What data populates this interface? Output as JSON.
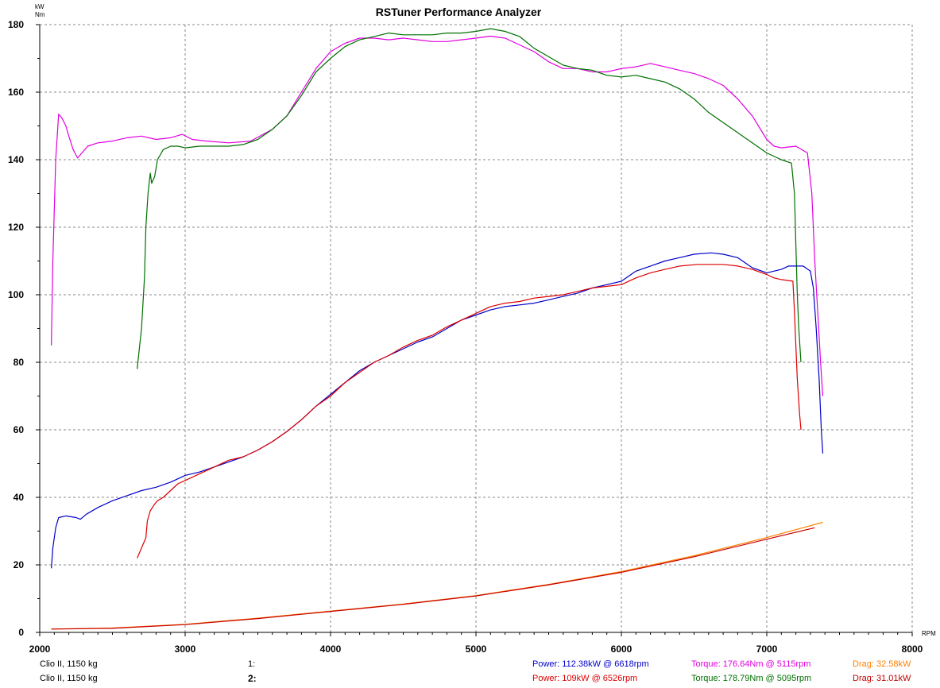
{
  "chart_data": {
    "type": "line",
    "title": "RSTuner Performance Analyzer",
    "ylabel_units": [
      "kW",
      "Nm"
    ],
    "xlabel": "RPM",
    "xlim": [
      2000,
      8000
    ],
    "ylim": [
      0,
      180
    ],
    "x_ticks": [
      "2000",
      "3000",
      "4000",
      "5000",
      "6000",
      "7000",
      "8000"
    ],
    "y_ticks": [
      "0",
      "20",
      "40",
      "60",
      "80",
      "100",
      "120",
      "140",
      "160",
      "180"
    ],
    "grid": true,
    "series": [
      {
        "name": "Torque 1",
        "color": "#e000e0",
        "points": [
          [
            2080,
            85
          ],
          [
            2090,
            110
          ],
          [
            2110,
            140
          ],
          [
            2130,
            153.5
          ],
          [
            2150,
            152.5
          ],
          [
            2180,
            150
          ],
          [
            2200,
            147
          ],
          [
            2230,
            143
          ],
          [
            2260,
            140.5
          ],
          [
            2290,
            142
          ],
          [
            2330,
            144
          ],
          [
            2400,
            145
          ],
          [
            2500,
            145.5
          ],
          [
            2600,
            146.5
          ],
          [
            2700,
            147
          ],
          [
            2800,
            146
          ],
          [
            2900,
            146.5
          ],
          [
            2980,
            147.5
          ],
          [
            3050,
            146
          ],
          [
            3150,
            145.5
          ],
          [
            3300,
            145
          ],
          [
            3450,
            145.5
          ],
          [
            3600,
            149
          ],
          [
            3700,
            153
          ],
          [
            3800,
            160
          ],
          [
            3900,
            167
          ],
          [
            4000,
            172
          ],
          [
            4100,
            174.5
          ],
          [
            4200,
            176
          ],
          [
            4300,
            176
          ],
          [
            4400,
            175.5
          ],
          [
            4500,
            176
          ],
          [
            4600,
            175.5
          ],
          [
            4700,
            175
          ],
          [
            4800,
            175
          ],
          [
            4900,
            175.5
          ],
          [
            5000,
            176
          ],
          [
            5100,
            176.6
          ],
          [
            5200,
            176
          ],
          [
            5300,
            174
          ],
          [
            5400,
            172
          ],
          [
            5500,
            169
          ],
          [
            5600,
            167
          ],
          [
            5700,
            167
          ],
          [
            5800,
            166
          ],
          [
            5900,
            166
          ],
          [
            6000,
            167
          ],
          [
            6100,
            167.5
          ],
          [
            6200,
            168.5
          ],
          [
            6300,
            167.5
          ],
          [
            6400,
            166.5
          ],
          [
            6500,
            165.5
          ],
          [
            6600,
            164
          ],
          [
            6700,
            162
          ],
          [
            6800,
            158
          ],
          [
            6900,
            153
          ],
          [
            7000,
            146
          ],
          [
            7050,
            144
          ],
          [
            7100,
            143.5
          ],
          [
            7200,
            144
          ],
          [
            7280,
            142
          ],
          [
            7310,
            130
          ],
          [
            7330,
            110
          ],
          [
            7350,
            95
          ],
          [
            7370,
            80
          ],
          [
            7385,
            70
          ]
        ]
      },
      {
        "name": "Torque 2",
        "color": "#007000",
        "points": [
          [
            2670,
            78
          ],
          [
            2700,
            90
          ],
          [
            2720,
            105
          ],
          [
            2730,
            120
          ],
          [
            2745,
            130
          ],
          [
            2760,
            136
          ],
          [
            2770,
            133
          ],
          [
            2790,
            135
          ],
          [
            2810,
            140
          ],
          [
            2850,
            143
          ],
          [
            2900,
            144
          ],
          [
            2950,
            144
          ],
          [
            3000,
            143.5
          ],
          [
            3100,
            144
          ],
          [
            3200,
            144
          ],
          [
            3300,
            144
          ],
          [
            3400,
            144.5
          ],
          [
            3500,
            146
          ],
          [
            3600,
            149
          ],
          [
            3700,
            153
          ],
          [
            3800,
            159
          ],
          [
            3900,
            166
          ],
          [
            4000,
            170
          ],
          [
            4100,
            173.5
          ],
          [
            4200,
            175.5
          ],
          [
            4300,
            176.5
          ],
          [
            4400,
            177.5
          ],
          [
            4500,
            177
          ],
          [
            4600,
            177
          ],
          [
            4700,
            177
          ],
          [
            4800,
            177.5
          ],
          [
            4900,
            177.5
          ],
          [
            5000,
            178
          ],
          [
            5100,
            178.8
          ],
          [
            5200,
            178
          ],
          [
            5300,
            176.5
          ],
          [
            5400,
            173
          ],
          [
            5500,
            170.5
          ],
          [
            5600,
            168
          ],
          [
            5700,
            167
          ],
          [
            5800,
            166.5
          ],
          [
            5900,
            165
          ],
          [
            6000,
            164.5
          ],
          [
            6100,
            165
          ],
          [
            6200,
            164
          ],
          [
            6300,
            163
          ],
          [
            6400,
            161
          ],
          [
            6500,
            158
          ],
          [
            6600,
            154
          ],
          [
            6700,
            151
          ],
          [
            6800,
            148
          ],
          [
            6900,
            145
          ],
          [
            7000,
            142
          ],
          [
            7100,
            140
          ],
          [
            7170,
            139
          ],
          [
            7190,
            130
          ],
          [
            7200,
            115
          ],
          [
            7210,
            100
          ],
          [
            7220,
            90
          ],
          [
            7235,
            80
          ]
        ]
      },
      {
        "name": "Power 1",
        "color": "#0000c8",
        "points": [
          [
            2080,
            19
          ],
          [
            2090,
            25
          ],
          [
            2110,
            31
          ],
          [
            2130,
            34
          ],
          [
            2180,
            34.5
          ],
          [
            2250,
            34
          ],
          [
            2280,
            33.5
          ],
          [
            2320,
            35
          ],
          [
            2400,
            37
          ],
          [
            2500,
            39
          ],
          [
            2600,
            40.5
          ],
          [
            2700,
            42
          ],
          [
            2800,
            43
          ],
          [
            2900,
            44.5
          ],
          [
            3000,
            46.5
          ],
          [
            3100,
            47.5
          ],
          [
            3200,
            49
          ],
          [
            3300,
            50.5
          ],
          [
            3400,
            52
          ],
          [
            3500,
            54
          ],
          [
            3600,
            56.5
          ],
          [
            3700,
            59.5
          ],
          [
            3800,
            63
          ],
          [
            3900,
            67
          ],
          [
            4000,
            70.5
          ],
          [
            4100,
            74
          ],
          [
            4200,
            77.5
          ],
          [
            4300,
            80
          ],
          [
            4400,
            82
          ],
          [
            4500,
            84
          ],
          [
            4600,
            86
          ],
          [
            4700,
            87.5
          ],
          [
            4800,
            90
          ],
          [
            4900,
            92.5
          ],
          [
            5000,
            94
          ],
          [
            5100,
            95.5
          ],
          [
            5200,
            96.5
          ],
          [
            5300,
            97
          ],
          [
            5400,
            97.5
          ],
          [
            5500,
            98.5
          ],
          [
            5600,
            99.5
          ],
          [
            5700,
            100.5
          ],
          [
            5800,
            102
          ],
          [
            5900,
            103
          ],
          [
            6000,
            104
          ],
          [
            6100,
            107
          ],
          [
            6200,
            108.5
          ],
          [
            6300,
            110
          ],
          [
            6400,
            111
          ],
          [
            6500,
            112
          ],
          [
            6618,
            112.4
          ],
          [
            6700,
            112
          ],
          [
            6800,
            111
          ],
          [
            6900,
            108
          ],
          [
            7000,
            106.5
          ],
          [
            7100,
            107.5
          ],
          [
            7150,
            108.5
          ],
          [
            7200,
            108.5
          ],
          [
            7250,
            108.5
          ],
          [
            7300,
            107
          ],
          [
            7320,
            102
          ],
          [
            7340,
            90
          ],
          [
            7360,
            75
          ],
          [
            7375,
            60
          ],
          [
            7385,
            53
          ]
        ]
      },
      {
        "name": "Power 2",
        "color": "#dd0000",
        "points": [
          [
            2670,
            22
          ],
          [
            2700,
            25
          ],
          [
            2730,
            28
          ],
          [
            2740,
            33
          ],
          [
            2760,
            36
          ],
          [
            2790,
            38
          ],
          [
            2810,
            39
          ],
          [
            2850,
            40
          ],
          [
            2900,
            42
          ],
          [
            2950,
            44
          ],
          [
            3000,
            45
          ],
          [
            3100,
            47
          ],
          [
            3200,
            49
          ],
          [
            3300,
            51
          ],
          [
            3400,
            52
          ],
          [
            3500,
            54
          ],
          [
            3600,
            56.5
          ],
          [
            3700,
            59.5
          ],
          [
            3800,
            63
          ],
          [
            3900,
            67
          ],
          [
            4000,
            70
          ],
          [
            4100,
            74
          ],
          [
            4200,
            77
          ],
          [
            4300,
            80
          ],
          [
            4400,
            82
          ],
          [
            4500,
            84.5
          ],
          [
            4600,
            86.5
          ],
          [
            4700,
            88
          ],
          [
            4800,
            90.5
          ],
          [
            4900,
            92.5
          ],
          [
            5000,
            94.5
          ],
          [
            5100,
            96.5
          ],
          [
            5200,
            97.5
          ],
          [
            5300,
            98
          ],
          [
            5400,
            99
          ],
          [
            5500,
            99.5
          ],
          [
            5600,
            100
          ],
          [
            5700,
            101
          ],
          [
            5800,
            102
          ],
          [
            5900,
            102.5
          ],
          [
            6000,
            103
          ],
          [
            6100,
            105
          ],
          [
            6200,
            106.5
          ],
          [
            6300,
            107.5
          ],
          [
            6400,
            108.5
          ],
          [
            6526,
            109
          ],
          [
            6600,
            109
          ],
          [
            6700,
            109
          ],
          [
            6800,
            108.5
          ],
          [
            6900,
            107.5
          ],
          [
            7000,
            106
          ],
          [
            7050,
            105
          ],
          [
            7100,
            104.5
          ],
          [
            7180,
            104
          ],
          [
            7190,
            95
          ],
          [
            7200,
            85
          ],
          [
            7210,
            75
          ],
          [
            7225,
            65
          ],
          [
            7235,
            60
          ]
        ]
      },
      {
        "name": "Drag 1",
        "color": "#ff8000",
        "points": [
          [
            2080,
            1
          ],
          [
            2500,
            1.3
          ],
          [
            3000,
            2.4
          ],
          [
            3500,
            4.2
          ],
          [
            4000,
            6.3
          ],
          [
            4500,
            8.4
          ],
          [
            5000,
            10.9
          ],
          [
            5500,
            14.2
          ],
          [
            6000,
            18
          ],
          [
            6500,
            22.7
          ],
          [
            7000,
            28.1
          ],
          [
            7385,
            32.6
          ]
        ]
      },
      {
        "name": "Drag 2",
        "color": "#c80000",
        "points": [
          [
            2080,
            1
          ],
          [
            2500,
            1.2
          ],
          [
            3000,
            2.3
          ],
          [
            3500,
            4.1
          ],
          [
            4000,
            6.2
          ],
          [
            4500,
            8.3
          ],
          [
            5000,
            10.8
          ],
          [
            5500,
            14.1
          ],
          [
            6000,
            17.8
          ],
          [
            6500,
            22.4
          ],
          [
            7000,
            27.6
          ],
          [
            7330,
            31
          ]
        ]
      }
    ]
  },
  "footer": {
    "row1": {
      "car": "Clio II, 1150 kg",
      "run": "1:",
      "power": "Power: 112.38kW @ 6618rpm",
      "torque": "Torque: 176.64Nm @ 5115rpm",
      "drag": "Drag: 32.58kW"
    },
    "row2": {
      "car": "Clio II, 1150 kg",
      "run": "2:",
      "power": "Power: 109kW @ 6526rpm",
      "torque": "Torque: 178.79Nm @ 5095rpm",
      "drag": "Drag: 31.01kW"
    },
    "colors": {
      "power1": "#0000cc",
      "power2": "#dd0000",
      "torque1": "#e000e0",
      "torque2": "#007000",
      "drag1": "#ff8000",
      "drag2": "#c00000"
    }
  }
}
